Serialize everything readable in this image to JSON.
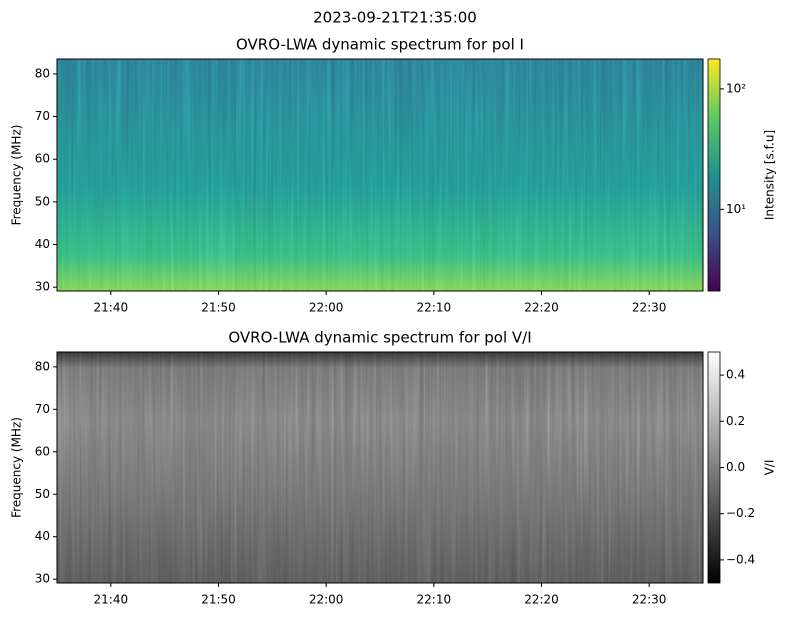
{
  "suptitle": "2023-09-21T21:35:00",
  "chart_data": [
    {
      "type": "heatmap",
      "title": "OVRO-LWA dynamic spectrum for pol I",
      "ylabel": "Frequency (MHz)",
      "xlim": [
        "2023-09-21T21:35:00",
        "2023-09-21T22:35:00"
      ],
      "xticks": [
        {
          "value": "2023-09-21T21:40:00",
          "label": "21:40"
        },
        {
          "value": "2023-09-21T21:50:00",
          "label": "21:50"
        },
        {
          "value": "2023-09-21T22:00:00",
          "label": "22:00"
        },
        {
          "value": "2023-09-21T22:10:00",
          "label": "22:10"
        },
        {
          "value": "2023-09-21T22:20:00",
          "label": "22:20"
        },
        {
          "value": "2023-09-21T22:30:00",
          "label": "22:30"
        }
      ],
      "ylim": [
        29.1,
        83.5
      ],
      "yticks": [
        30,
        40,
        50,
        60,
        70,
        80
      ],
      "colormap": "viridis",
      "colorbar_label": "Intensity [s.f.u]",
      "colorbar_scale": "log",
      "clim": [
        2.1,
        177
      ],
      "cticks": [
        {
          "value": 10,
          "label": "10¹"
        },
        {
          "value": 100,
          "label": "10²"
        }
      ]
    },
    {
      "type": "heatmap",
      "title": "OVRO-LWA dynamic spectrum for pol V/I",
      "ylabel": "Frequency (MHz)",
      "xlim": [
        "2023-09-21T21:35:00",
        "2023-09-21T22:35:00"
      ],
      "xticks": [
        {
          "value": "2023-09-21T21:40:00",
          "label": "21:40"
        },
        {
          "value": "2023-09-21T21:50:00",
          "label": "21:50"
        },
        {
          "value": "2023-09-21T22:00:00",
          "label": "22:00"
        },
        {
          "value": "2023-09-21T22:10:00",
          "label": "22:10"
        },
        {
          "value": "2023-09-21T22:20:00",
          "label": "22:20"
        },
        {
          "value": "2023-09-21T22:30:00",
          "label": "22:30"
        }
      ],
      "ylim": [
        29.1,
        83.5
      ],
      "yticks": [
        30,
        40,
        50,
        60,
        70,
        80
      ],
      "colormap": "gray",
      "colorbar_label": "V/I",
      "colorbar_scale": "linear",
      "clim": [
        -0.5,
        0.5
      ],
      "cticks": [
        {
          "value": -0.4,
          "label": "−0.4"
        },
        {
          "value": -0.2,
          "label": "−0.2"
        },
        {
          "value": 0.0,
          "label": "0.0"
        },
        0.2,
        0.4
      ]
    }
  ]
}
